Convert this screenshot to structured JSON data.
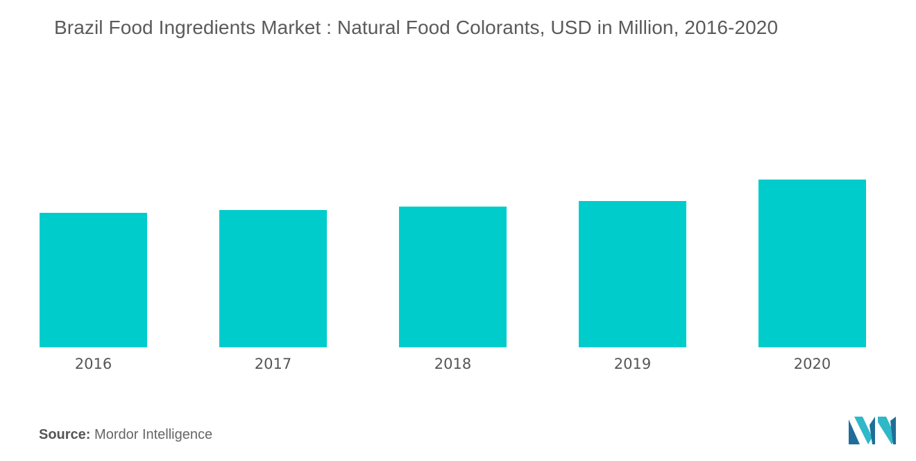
{
  "chart_data": {
    "type": "bar",
    "title": "Brazil Food Ingredients Market : Natural Food Colorants, USD in Million, 2016-2020",
    "categories": [
      "2016",
      "2017",
      "2018",
      "2019",
      "2020"
    ],
    "values": [
      194,
      198,
      203,
      211,
      242
    ],
    "xlabel": "",
    "ylabel": "",
    "ylim": [
      0,
      400
    ],
    "grid": false,
    "legend": "none",
    "bar_color": "#00CCCC"
  },
  "source": {
    "label": "Source:",
    "text": "Mordor Intelligence"
  },
  "logo": {
    "icon": "mordor-intelligence-logo",
    "colors": [
      "#1F6E99",
      "#2FB8C8"
    ]
  }
}
